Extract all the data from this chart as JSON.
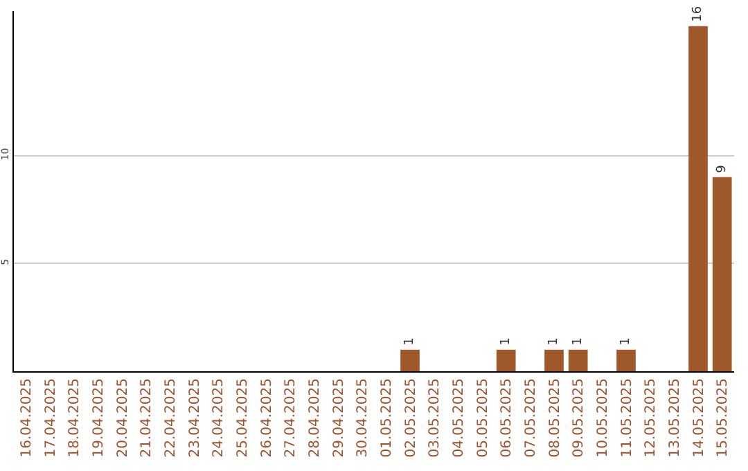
{
  "chart_data": {
    "type": "bar",
    "categories": [
      "16.04.2025",
      "17.04.2025",
      "18.04.2025",
      "19.04.2025",
      "20.04.2025",
      "21.04.2025",
      "22.04.2025",
      "23.04.2025",
      "24.04.2025",
      "25.04.2025",
      "26.04.2025",
      "27.04.2025",
      "28.04.2025",
      "29.04.2025",
      "30.04.2025",
      "01.05.2025",
      "02.05.2025",
      "03.05.2025",
      "04.05.2025",
      "05.05.2025",
      "06.05.2025",
      "07.05.2025",
      "08.05.2025",
      "09.05.2025",
      "10.05.2025",
      "11.05.2025",
      "12.05.2025",
      "13.05.2025",
      "14.05.2025",
      "15.05.2025"
    ],
    "values": [
      0,
      0,
      0,
      0,
      0,
      0,
      0,
      0,
      0,
      0,
      0,
      0,
      0,
      0,
      0,
      0,
      1,
      0,
      0,
      0,
      1,
      0,
      1,
      1,
      0,
      1,
      0,
      0,
      16,
      9
    ],
    "value_labels": [
      null,
      null,
      null,
      null,
      null,
      null,
      null,
      null,
      null,
      null,
      null,
      null,
      null,
      null,
      null,
      null,
      "1",
      null,
      null,
      null,
      "1",
      null,
      "1",
      "1",
      null,
      "1",
      null,
      null,
      "16",
      "9"
    ],
    "color": "#a0592a",
    "ylim": [
      0,
      16.7
    ],
    "yticks": [
      5,
      10
    ],
    "grid": "y"
  }
}
